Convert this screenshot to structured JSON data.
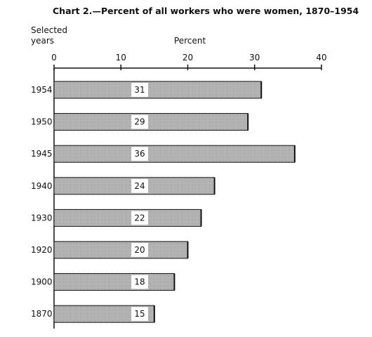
{
  "chart_data": {
    "type": "bar",
    "orientation": "horizontal",
    "title": "Chart 2.—Percent of all workers who were women, 1870–1954",
    "xlabel": "Percent",
    "ylabel_line1": "Selected",
    "ylabel_line2": "years",
    "xlim": [
      0,
      40
    ],
    "xticks": [
      "0",
      "10",
      "20",
      "30",
      "40"
    ],
    "categories": [
      "1954",
      "1950",
      "1945",
      "1940",
      "1930",
      "1920",
      "1900",
      "1870"
    ],
    "values": [
      31,
      29,
      36,
      24,
      22,
      20,
      18,
      15
    ],
    "value_labels": [
      "31",
      "29",
      "36",
      "24",
      "22",
      "20",
      "18",
      "15"
    ],
    "bar_color": "#c9c9c9",
    "grid": false
  }
}
